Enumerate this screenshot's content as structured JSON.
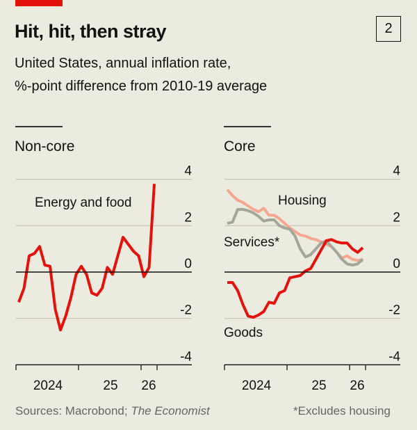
{
  "header": {
    "title": "Hit, hit, then stray",
    "chart_number": "2",
    "subtitle_line1": "United States, annual inflation rate,",
    "subtitle_line2": "%-point difference from 2010-19 average"
  },
  "footer": {
    "sources_prefix": "Sources: Macrobond; ",
    "sources_italic": "The Economist",
    "note": "*Excludes housing"
  },
  "colors": {
    "background": "#ecebe0",
    "red": "#e3120b",
    "housing": "#f4a78e",
    "services": "#a4a69a",
    "grid": "#c9c8bc",
    "accent_bar": "#e3120b"
  },
  "chart_data": [
    {
      "type": "line",
      "title": "Non-core",
      "ylim": [
        -4,
        4
      ],
      "yticks": [
        "4",
        "2",
        "0",
        "-2",
        "-4"
      ],
      "ytick_values": [
        4,
        2,
        0,
        -2,
        -4
      ],
      "xtick_labels": [
        "2024",
        "25",
        "26"
      ],
      "grid": true,
      "frequency": "monthly",
      "start": "2024-01",
      "end": "2026-03",
      "series": [
        {
          "name": "Energy and food",
          "color": "#e3120b",
          "values": [
            -1.3,
            -0.7,
            0.7,
            0.8,
            1.1,
            0.3,
            0.25,
            -1.6,
            -2.5,
            -1.9,
            -1.1,
            -0.1,
            0.25,
            -0.1,
            -0.9,
            -1.0,
            -0.7,
            0.2,
            -0.1,
            0.7,
            1.5,
            1.2,
            0.9,
            0.7,
            -0.2,
            0.2,
            3.8
          ]
        }
      ]
    },
    {
      "type": "line",
      "title": "Core",
      "ylim": [
        -4,
        4
      ],
      "yticks": [
        "4",
        "2",
        "0",
        "-2",
        "-4"
      ],
      "ytick_values": [
        4,
        2,
        0,
        -2,
        -4
      ],
      "xtick_labels": [
        "2024",
        "25",
        "26"
      ],
      "grid": true,
      "frequency": "monthly",
      "start": "2024-01",
      "end": "2026-03",
      "series": [
        {
          "name": "Housing",
          "color": "#f4a78e",
          "values": [
            3.55,
            3.3,
            3.1,
            3.0,
            2.85,
            2.7,
            2.6,
            2.75,
            2.45,
            2.45,
            2.3,
            2.1,
            1.9,
            1.75,
            1.6,
            1.55,
            1.45,
            1.4,
            1.3,
            1.2,
            1.1,
            0.85,
            0.6,
            0.7,
            0.55,
            0.5,
            0.55
          ]
        },
        {
          "name": "Services*",
          "color": "#a4a69a",
          "values": [
            2.1,
            2.15,
            2.7,
            2.7,
            2.65,
            2.55,
            2.4,
            2.2,
            2.25,
            2.25,
            2.0,
            1.9,
            1.85,
            1.55,
            1.0,
            0.65,
            0.75,
            1.0,
            1.25,
            1.35,
            1.1,
            0.85,
            0.55,
            0.35,
            0.3,
            0.35,
            0.55
          ]
        },
        {
          "name": "Goods",
          "color": "#e3120b",
          "values": [
            -0.45,
            -0.45,
            -0.8,
            -1.4,
            -1.9,
            -1.95,
            -1.85,
            -1.7,
            -1.3,
            -1.35,
            -0.9,
            -0.8,
            -0.25,
            -0.2,
            -0.15,
            0.05,
            0.15,
            0.55,
            0.95,
            1.35,
            1.4,
            1.3,
            1.25,
            1.25,
            1.0,
            0.85,
            1.05
          ]
        }
      ]
    }
  ]
}
